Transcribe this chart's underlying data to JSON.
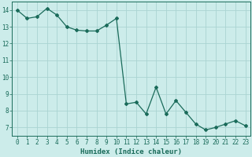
{
  "x": [
    0,
    1,
    2,
    3,
    4,
    5,
    6,
    7,
    8,
    9,
    10,
    11,
    12,
    13,
    14,
    15,
    16,
    17,
    18,
    19,
    20,
    21,
    22,
    23
  ],
  "y": [
    14.0,
    13.5,
    13.6,
    14.1,
    13.7,
    13.0,
    12.8,
    12.75,
    12.75,
    13.1,
    13.5,
    8.4,
    8.5,
    7.8,
    9.4,
    7.8,
    8.6,
    7.9,
    7.2,
    6.85,
    7.0,
    7.2,
    7.4,
    7.1
  ],
  "line_color": "#1a6b5a",
  "marker": "D",
  "marker_size": 2.0,
  "bg_color": "#ccecea",
  "grid_color": "#aad4d2",
  "xlabel": "Humidex (Indice chaleur)",
  "ylim": [
    6.5,
    14.5
  ],
  "xlim": [
    -0.5,
    23.5
  ],
  "yticks": [
    7,
    8,
    9,
    10,
    11,
    12,
    13,
    14
  ],
  "xticks": [
    0,
    1,
    2,
    3,
    4,
    5,
    6,
    7,
    8,
    9,
    10,
    11,
    12,
    13,
    14,
    15,
    16,
    17,
    18,
    19,
    20,
    21,
    22,
    23
  ],
  "tick_color": "#1a6b5a",
  "label_fontsize": 6.5,
  "tick_fontsize": 5.5,
  "linewidth": 0.9
}
